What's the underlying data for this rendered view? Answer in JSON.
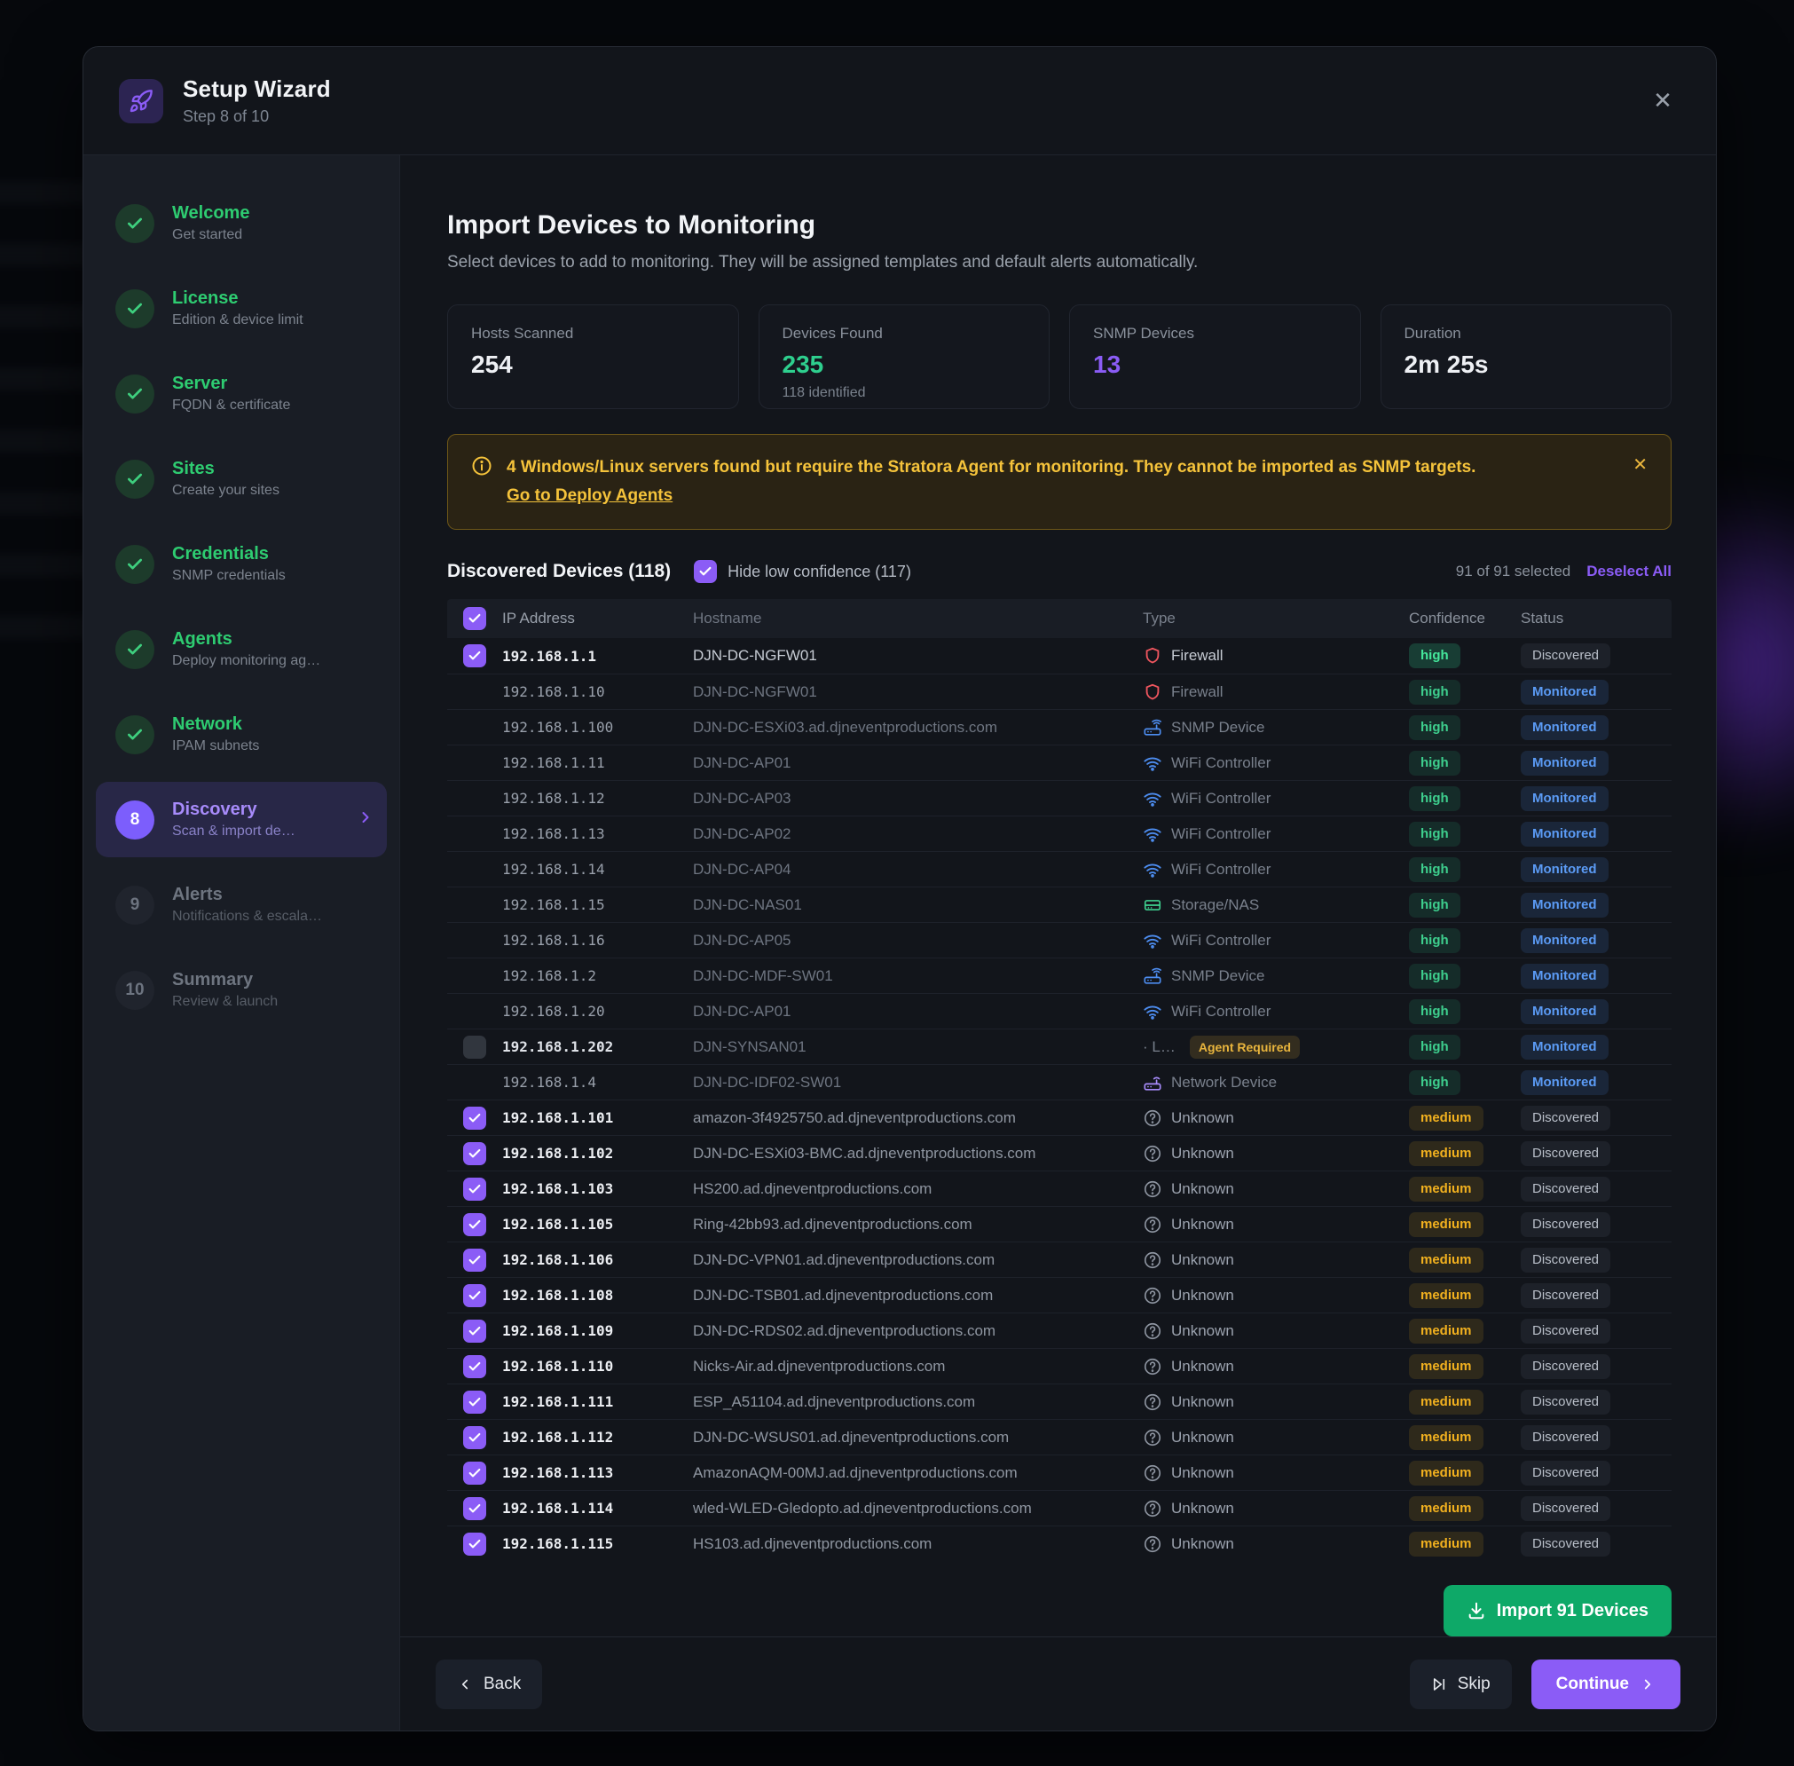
{
  "wizard": {
    "title": "Setup Wizard",
    "step_label": "Step 8 of 10",
    "close_glyph": "✕"
  },
  "sidebar": {
    "steps": [
      {
        "num": "1",
        "title": "Welcome",
        "subtitle": "Get started",
        "state": "done"
      },
      {
        "num": "2",
        "title": "License",
        "subtitle": "Edition & device limit",
        "state": "done"
      },
      {
        "num": "3",
        "title": "Server",
        "subtitle": "FQDN & certificate",
        "state": "done"
      },
      {
        "num": "4",
        "title": "Sites",
        "subtitle": "Create your sites",
        "state": "done"
      },
      {
        "num": "5",
        "title": "Credentials",
        "subtitle": "SNMP credentials",
        "state": "done"
      },
      {
        "num": "6",
        "title": "Agents",
        "subtitle": "Deploy monitoring ag…",
        "state": "done"
      },
      {
        "num": "7",
        "title": "Network",
        "subtitle": "IPAM subnets",
        "state": "done"
      },
      {
        "num": "8",
        "title": "Discovery",
        "subtitle": "Scan & import de…",
        "state": "active"
      },
      {
        "num": "9",
        "title": "Alerts",
        "subtitle": "Notifications & escala…",
        "state": "pending"
      },
      {
        "num": "10",
        "title": "Summary",
        "subtitle": "Review & launch",
        "state": "pending"
      }
    ]
  },
  "main": {
    "title": "Import Devices to Monitoring",
    "subtitle": "Select devices to add to monitoring. They will be assigned templates and default alerts automatically.",
    "stats": [
      {
        "label": "Hosts Scanned",
        "value": "254",
        "color": "white",
        "sub": ""
      },
      {
        "label": "Devices Found",
        "value": "235",
        "color": "green",
        "sub": "118 identified"
      },
      {
        "label": "SNMP Devices",
        "value": "13",
        "color": "purple",
        "sub": ""
      },
      {
        "label": "Duration",
        "value": "2m 25s",
        "color": "white",
        "sub": ""
      }
    ],
    "warning": {
      "text": "4 Windows/Linux servers found but require the Stratora Agent for monitoring. They cannot be imported as SNMP targets.",
      "link": "Go to Deploy Agents",
      "close_glyph": "✕"
    },
    "table": {
      "section_title": "Discovered Devices (118)",
      "hide_low_confidence_label": "Hide low confidence (117)",
      "hide_low_confidence_checked": true,
      "selected_summary": "91 of 91 selected",
      "deselect_all_label": "Deselect All",
      "columns": [
        "IP Address",
        "Hostname",
        "Type",
        "Confidence",
        "Status"
      ],
      "rows": [
        {
          "ip": "192.168.1.1",
          "hostname": "DJN-DC-NGFW01",
          "type": "Firewall",
          "icon": "firewall",
          "confidence": "high",
          "status": "Discovered",
          "check": "on",
          "highlight": true
        },
        {
          "ip": "192.168.1.10",
          "hostname": "DJN-DC-NGFW01",
          "type": "Firewall",
          "icon": "firewall",
          "confidence": "high",
          "status": "Monitored",
          "check": "none"
        },
        {
          "ip": "192.168.1.100",
          "hostname": "DJN-DC-ESXi03.ad.djneventproductions.com",
          "type": "SNMP Device",
          "icon": "snmp",
          "confidence": "high",
          "status": "Monitored",
          "check": "none"
        },
        {
          "ip": "192.168.1.11",
          "hostname": "DJN-DC-AP01",
          "type": "WiFi Controller",
          "icon": "wifi",
          "confidence": "high",
          "status": "Monitored",
          "check": "none"
        },
        {
          "ip": "192.168.1.12",
          "hostname": "DJN-DC-AP03",
          "type": "WiFi Controller",
          "icon": "wifi",
          "confidence": "high",
          "status": "Monitored",
          "check": "none"
        },
        {
          "ip": "192.168.1.13",
          "hostname": "DJN-DC-AP02",
          "type": "WiFi Controller",
          "icon": "wifi",
          "confidence": "high",
          "status": "Monitored",
          "check": "none"
        },
        {
          "ip": "192.168.1.14",
          "hostname": "DJN-DC-AP04",
          "type": "WiFi Controller",
          "icon": "wifi",
          "confidence": "high",
          "status": "Monitored",
          "check": "none"
        },
        {
          "ip": "192.168.1.15",
          "hostname": "DJN-DC-NAS01",
          "type": "Storage/NAS",
          "icon": "storage",
          "confidence": "high",
          "status": "Monitored",
          "check": "none"
        },
        {
          "ip": "192.168.1.16",
          "hostname": "DJN-DC-AP05",
          "type": "WiFi Controller",
          "icon": "wifi",
          "confidence": "high",
          "status": "Monitored",
          "check": "none"
        },
        {
          "ip": "192.168.1.2",
          "hostname": "DJN-DC-MDF-SW01",
          "type": "SNMP Device",
          "icon": "snmp",
          "confidence": "high",
          "status": "Monitored",
          "check": "none"
        },
        {
          "ip": "192.168.1.20",
          "hostname": "DJN-DC-AP01",
          "type": "WiFi Controller",
          "icon": "wifi",
          "confidence": "high",
          "status": "Monitored",
          "check": "none"
        },
        {
          "ip": "192.168.1.202",
          "hostname": "DJN-SYNSAN01",
          "type": "· L…",
          "icon": "none",
          "agent_badge": "Agent Required",
          "confidence": "high",
          "status": "Monitored",
          "check": "disabled",
          "ip_bright": true
        },
        {
          "ip": "192.168.1.4",
          "hostname": "DJN-DC-IDF02-SW01",
          "type": "Network Device",
          "icon": "network",
          "confidence": "high",
          "status": "Monitored",
          "check": "none"
        },
        {
          "ip": "192.168.1.101",
          "hostname": "amazon-3f4925750.ad.djneventproductions.com",
          "type": "Unknown",
          "icon": "unknown",
          "confidence": "medium",
          "status": "Discovered",
          "check": "on"
        },
        {
          "ip": "192.168.1.102",
          "hostname": "DJN-DC-ESXi03-BMC.ad.djneventproductions.com",
          "type": "Unknown",
          "icon": "unknown",
          "confidence": "medium",
          "status": "Discovered",
          "check": "on"
        },
        {
          "ip": "192.168.1.103",
          "hostname": "HS200.ad.djneventproductions.com",
          "type": "Unknown",
          "icon": "unknown",
          "confidence": "medium",
          "status": "Discovered",
          "check": "on"
        },
        {
          "ip": "192.168.1.105",
          "hostname": "Ring-42bb93.ad.djneventproductions.com",
          "type": "Unknown",
          "icon": "unknown",
          "confidence": "medium",
          "status": "Discovered",
          "check": "on"
        },
        {
          "ip": "192.168.1.106",
          "hostname": "DJN-DC-VPN01.ad.djneventproductions.com",
          "type": "Unknown",
          "icon": "unknown",
          "confidence": "medium",
          "status": "Discovered",
          "check": "on"
        },
        {
          "ip": "192.168.1.108",
          "hostname": "DJN-DC-TSB01.ad.djneventproductions.com",
          "type": "Unknown",
          "icon": "unknown",
          "confidence": "medium",
          "status": "Discovered",
          "check": "on"
        },
        {
          "ip": "192.168.1.109",
          "hostname": "DJN-DC-RDS02.ad.djneventproductions.com",
          "type": "Unknown",
          "icon": "unknown",
          "confidence": "medium",
          "status": "Discovered",
          "check": "on"
        },
        {
          "ip": "192.168.1.110",
          "hostname": "Nicks-Air.ad.djneventproductions.com",
          "type": "Unknown",
          "icon": "unknown",
          "confidence": "medium",
          "status": "Discovered",
          "check": "on"
        },
        {
          "ip": "192.168.1.111",
          "hostname": "ESP_A51104.ad.djneventproductions.com",
          "type": "Unknown",
          "icon": "unknown",
          "confidence": "medium",
          "status": "Discovered",
          "check": "on"
        },
        {
          "ip": "192.168.1.112",
          "hostname": "DJN-DC-WSUS01.ad.djneventproductions.com",
          "type": "Unknown",
          "icon": "unknown",
          "confidence": "medium",
          "status": "Discovered",
          "check": "on"
        },
        {
          "ip": "192.168.1.113",
          "hostname": "AmazonAQM-00MJ.ad.djneventproductions.com",
          "type": "Unknown",
          "icon": "unknown",
          "confidence": "medium",
          "status": "Discovered",
          "check": "on"
        },
        {
          "ip": "192.168.1.114",
          "hostname": "wled-WLED-Gledopto.ad.djneventproductions.com",
          "type": "Unknown",
          "icon": "unknown",
          "confidence": "medium",
          "status": "Discovered",
          "check": "on"
        },
        {
          "ip": "192.168.1.115",
          "hostname": "HS103.ad.djneventproductions.com",
          "type": "Unknown",
          "icon": "unknown",
          "confidence": "medium",
          "status": "Discovered",
          "check": "on"
        }
      ]
    },
    "import_button_label": "Import 91 Devices"
  },
  "footer": {
    "back_label": "Back",
    "skip_label": "Skip",
    "continue_label": "Continue"
  },
  "colors": {
    "accent_purple": "#8b5cf6",
    "success_green": "#2ecf8e",
    "monitored_blue": "#5b9bf5",
    "warning_amber": "#f5c33b",
    "firewall_red": "#f0565f",
    "import_green": "#0ea968"
  }
}
